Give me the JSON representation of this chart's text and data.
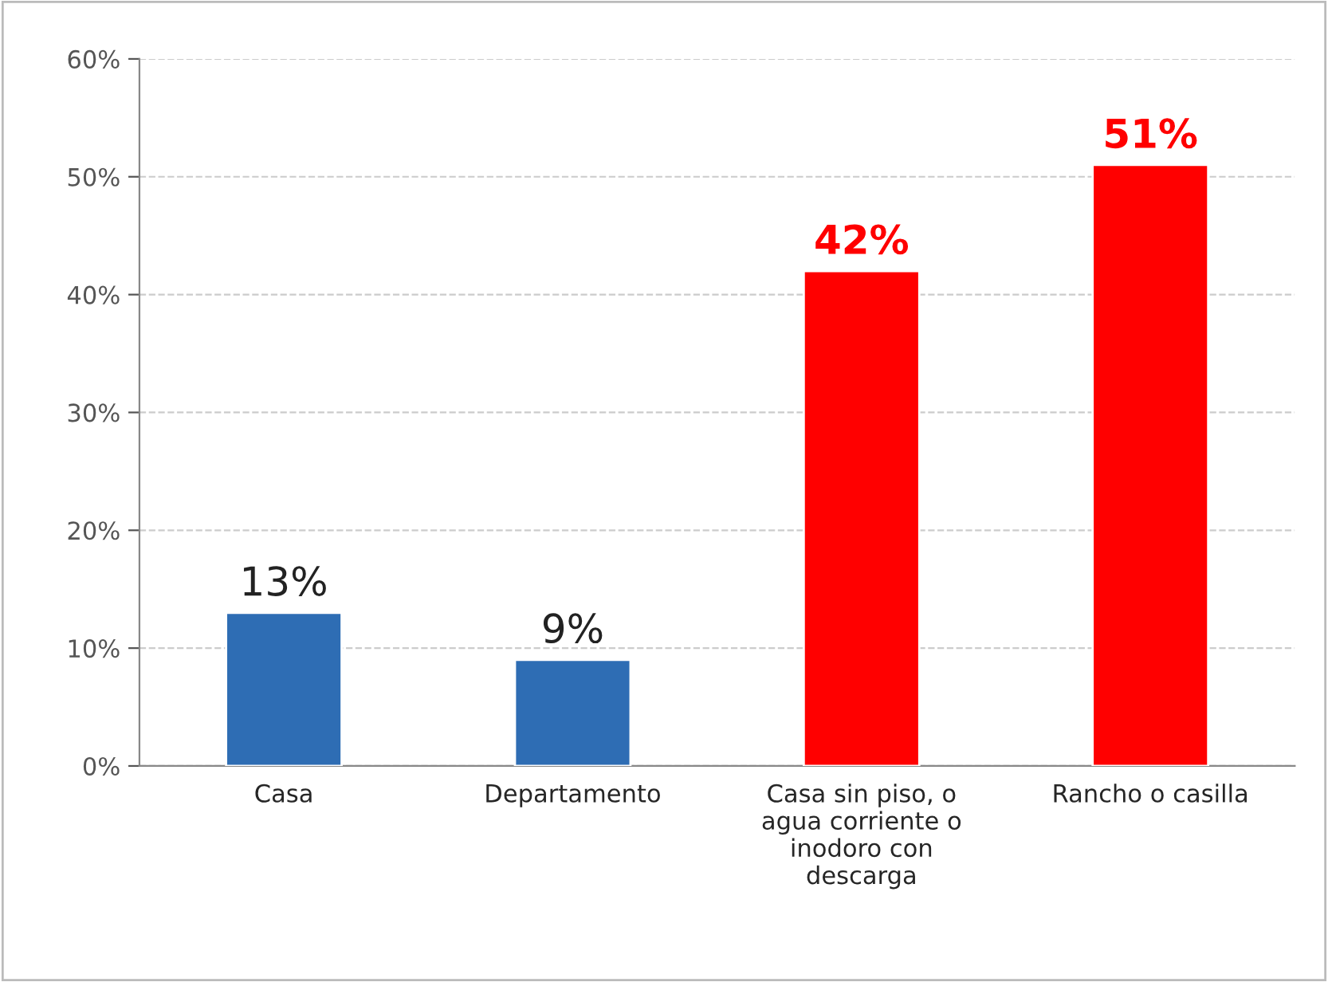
{
  "chart_data": {
    "type": "bar",
    "categories": [
      "Casa",
      "Departamento",
      "Casa sin piso, o\nagua corriente o\ninodoro con\ndescarga",
      "Rancho o casilla"
    ],
    "values": [
      13,
      9,
      42,
      51
    ],
    "colors": [
      "#2e6db4",
      "#2e6db4",
      "#ff0000",
      "#ff0000"
    ],
    "value_labels": [
      "13%",
      "9%",
      "42%",
      "51%"
    ],
    "ylim": [
      0,
      60
    ],
    "yticks": [
      {
        "value": 0,
        "label": "0%"
      },
      {
        "value": 10,
        "label": "10%"
      },
      {
        "value": 20,
        "label": "20%"
      },
      {
        "value": 30,
        "label": "30%"
      },
      {
        "value": 40,
        "label": "40%"
      },
      {
        "value": 50,
        "label": "50%"
      },
      {
        "value": 60,
        "label": "60%"
      }
    ],
    "grid": "y"
  }
}
